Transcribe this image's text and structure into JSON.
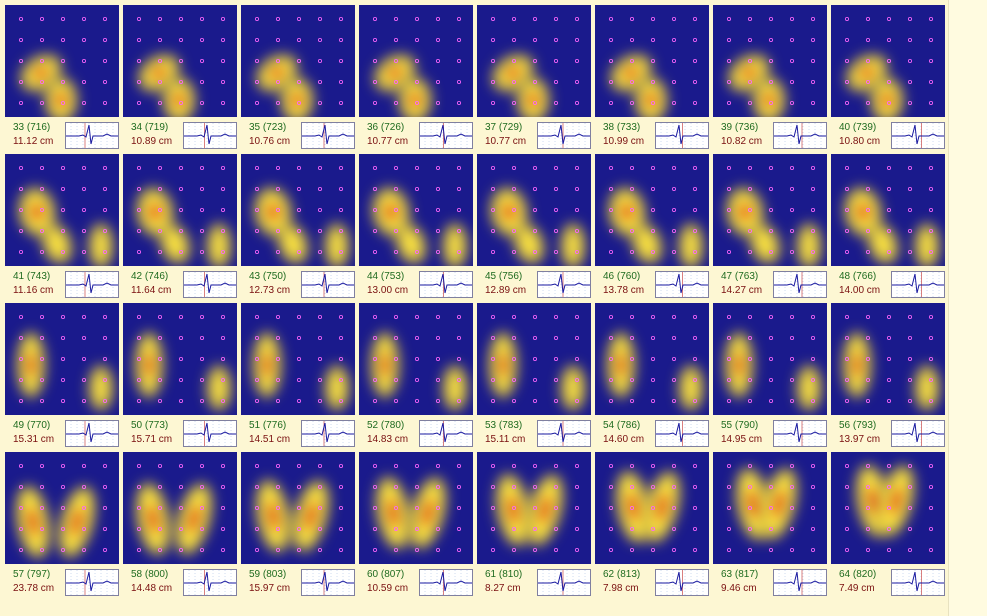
{
  "panels": [
    {
      "frame": "33 (716)",
      "distance": "11.12 cm"
    },
    {
      "frame": "34 (719)",
      "distance": "10.89 cm"
    },
    {
      "frame": "35 (723)",
      "distance": "10.76 cm"
    },
    {
      "frame": "36 (726)",
      "distance": "10.77 cm"
    },
    {
      "frame": "37 (729)",
      "distance": "10.77 cm"
    },
    {
      "frame": "38 (733)",
      "distance": "10.99 cm"
    },
    {
      "frame": "39 (736)",
      "distance": "10.82 cm"
    },
    {
      "frame": "40 (739)",
      "distance": "10.80 cm"
    },
    {
      "frame": "41 (743)",
      "distance": "11.16 cm"
    },
    {
      "frame": "42 (746)",
      "distance": "11.64 cm"
    },
    {
      "frame": "43 (750)",
      "distance": "12.73 cm"
    },
    {
      "frame": "44 (753)",
      "distance": "13.00 cm"
    },
    {
      "frame": "45 (756)",
      "distance": "12.89 cm"
    },
    {
      "frame": "46 (760)",
      "distance": "13.78 cm"
    },
    {
      "frame": "47 (763)",
      "distance": "14.27 cm"
    },
    {
      "frame": "48 (766)",
      "distance": "14.00 cm"
    },
    {
      "frame": "49 (770)",
      "distance": "15.31 cm"
    },
    {
      "frame": "50 (773)",
      "distance": "15.71 cm"
    },
    {
      "frame": "51 (776)",
      "distance": "14.51 cm"
    },
    {
      "frame": "52 (780)",
      "distance": "14.83 cm"
    },
    {
      "frame": "53 (783)",
      "distance": "15.11 cm"
    },
    {
      "frame": "54 (786)",
      "distance": "14.60 cm"
    },
    {
      "frame": "55 (790)",
      "distance": "14.95 cm"
    },
    {
      "frame": "56 (793)",
      "distance": "13.97 cm"
    },
    {
      "frame": "57 (797)",
      "distance": "23.78 cm"
    },
    {
      "frame": "58 (800)",
      "distance": "14.48 cm"
    },
    {
      "frame": "59 (803)",
      "distance": "15.97 cm"
    },
    {
      "frame": "60 (807)",
      "distance": "10.59 cm"
    },
    {
      "frame": "61 (810)",
      "distance": "8.27 cm"
    },
    {
      "frame": "62 (813)",
      "distance": "7.98 cm"
    },
    {
      "frame": "63 (817)",
      "distance": "9.46 cm"
    },
    {
      "frame": "64 (820)",
      "distance": "7.49 cm"
    }
  ]
}
